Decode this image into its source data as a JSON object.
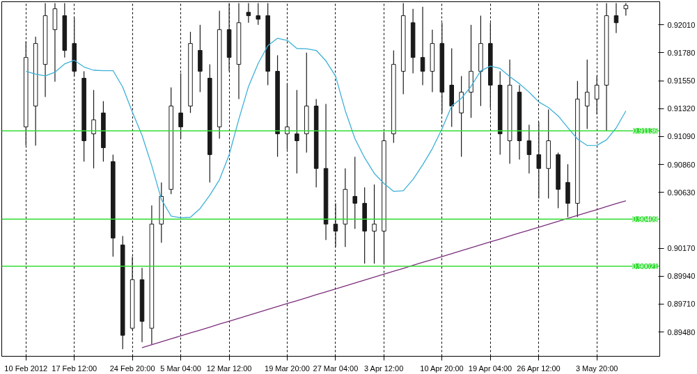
{
  "chart_data": {
    "type": "candlestick",
    "categories": [
      "10 Feb 2012",
      null,
      null,
      null,
      null,
      "17 Feb 12:00",
      null,
      null,
      null,
      null,
      null,
      "24 Feb 20:00",
      null,
      null,
      null,
      null,
      "5 Mar 04:00",
      null,
      null,
      null,
      null,
      "12 Mar 12:00",
      null,
      null,
      null,
      null,
      null,
      "19 Mar 20:00",
      null,
      null,
      null,
      null,
      "27 Mar 04:00",
      null,
      null,
      null,
      null,
      "3 Apr 12:00",
      null,
      null,
      null,
      null,
      null,
      "10 Apr 20:00",
      null,
      null,
      null,
      null,
      "19 Apr 04:00",
      null,
      null,
      null,
      null,
      "26 Apr 12:00",
      null,
      null,
      null,
      null,
      null,
      "3 May 20:00",
      null,
      null,
      null
    ],
    "ylim": [
      0.8928,
      0.922
    ],
    "yticks": [
      {
        "value": 0.9201,
        "label": "0.92010"
      },
      {
        "value": 0.9178,
        "label": "0.91780"
      },
      {
        "value": 0.9155,
        "label": "0.91550"
      },
      {
        "value": 0.9132,
        "label": "0.91320"
      },
      {
        "value": 0.9109,
        "label": "0.91090"
      },
      {
        "value": 0.9086,
        "label": "0.90860"
      },
      {
        "value": 0.9063,
        "label": "0.90630"
      },
      {
        "value": 0.9017,
        "label": "0.90170"
      },
      {
        "value": 0.8994,
        "label": "0.89940"
      },
      {
        "value": 0.8971,
        "label": "0.89710"
      },
      {
        "value": 0.8948,
        "label": "0.89480"
      }
    ],
    "grid": "x",
    "ref_lines": [
      {
        "axis": "y",
        "value": 0.91136,
        "label": "0.91136",
        "color": "#33dd33"
      },
      {
        "axis": "y",
        "value": 0.90409,
        "label": "0.90409",
        "color": "#33dd33"
      },
      {
        "axis": "y",
        "value": 0.90021,
        "label": "0.90021",
        "color": "#33dd33"
      }
    ],
    "series": [
      {
        "color": "#1a1a1a",
        "ohlc": [
          [
            0.91169,
            0.91873,
            0.91015,
            0.91741
          ],
          [
            0.91341,
            0.91913,
            0.91015,
            0.91856
          ],
          [
            0.91684,
            0.92188,
            0.91415,
            0.92085
          ],
          [
            0.9197,
            0.92188,
            0.91541,
            0.92142
          ],
          [
            0.92085,
            0.92188,
            0.91741,
            0.91799
          ],
          [
            0.91856,
            0.92067,
            0.91587,
            0.91627
          ],
          [
            0.9157,
            0.91627,
            0.90883,
            0.91055
          ],
          [
            0.91112,
            0.91473,
            0.90827,
            0.91227
          ],
          [
            0.91284,
            0.91381,
            0.90883,
            0.90998
          ],
          [
            0.90883,
            0.90941,
            0.901,
            0.90254
          ],
          [
            0.90197,
            0.90271,
            0.89339,
            0.89453
          ],
          [
            0.89511,
            0.901,
            0.89494,
            0.89911
          ],
          [
            0.89911,
            0.90008,
            0.89396,
            0.89568
          ],
          [
            0.89511,
            0.90523,
            0.89379,
            0.90369
          ],
          [
            0.90369,
            0.90712,
            0.90214,
            0.90597
          ],
          [
            0.90655,
            0.91495,
            0.90615,
            0.91341
          ],
          [
            0.91284,
            0.9161,
            0.91072,
            0.91169
          ],
          [
            0.91341,
            0.91953,
            0.91284,
            0.91856
          ],
          [
            0.91799,
            0.9201,
            0.91455,
            0.91627
          ],
          [
            0.9157,
            0.91684,
            0.90712,
            0.90941
          ],
          [
            0.91169,
            0.92125,
            0.91072,
            0.9197
          ],
          [
            0.9197,
            0.92188,
            0.91627,
            0.91741
          ],
          [
            0.91684,
            0.92188,
            0.91398,
            0.92027
          ],
          [
            0.92113,
            0.92188,
            0.92027,
            0.92085
          ],
          [
            0.92085,
            0.92188,
            0.9201,
            0.92056
          ],
          [
            0.92085,
            0.92188,
            0.91513,
            0.91627
          ],
          [
            0.91627,
            0.91759,
            0.90923,
            0.91112
          ],
          [
            0.91112,
            0.9153,
            0.90981,
            0.91169
          ],
          [
            0.91112,
            0.91473,
            0.90786,
            0.91055
          ],
          [
            0.91112,
            0.91781,
            0.90958,
            0.91341
          ],
          [
            0.91341,
            0.91398,
            0.90672,
            0.90827
          ],
          [
            0.90827,
            0.91358,
            0.90237,
            0.90369
          ],
          [
            0.90369,
            0.9054,
            0.9018,
            0.90311
          ],
          [
            0.90369,
            0.90827,
            0.9018,
            0.90655
          ],
          [
            0.90597,
            0.90923,
            0.90329,
            0.9054
          ],
          [
            0.9054,
            0.90672,
            0.90043,
            0.90311
          ],
          [
            0.90311,
            0.90695,
            0.90043,
            0.90369
          ],
          [
            0.90311,
            0.91129,
            0.90043,
            0.91055
          ],
          [
            0.91112,
            0.91799,
            0.91038,
            0.91684
          ],
          [
            0.91627,
            0.92188,
            0.91438,
            0.92085
          ],
          [
            0.92027,
            0.92142,
            0.9161,
            0.91741
          ],
          [
            0.91741,
            0.92159,
            0.91513,
            0.91627
          ],
          [
            0.91627,
            0.9197,
            0.91455,
            0.91856
          ],
          [
            0.91856,
            0.92027,
            0.91284,
            0.91455
          ],
          [
            0.91513,
            0.91816,
            0.91169,
            0.91341
          ],
          [
            0.91284,
            0.91587,
            0.90923,
            0.91455
          ],
          [
            0.91455,
            0.9201,
            0.91244,
            0.91627
          ],
          [
            0.91627,
            0.92085,
            0.91341,
            0.91856
          ],
          [
            0.91856,
            0.92027,
            0.91324,
            0.91513
          ],
          [
            0.91513,
            0.91627,
            0.90941,
            0.91112
          ],
          [
            0.91055,
            0.91724,
            0.90866,
            0.91513
          ],
          [
            0.91455,
            0.91513,
            0.90901,
            0.91055
          ],
          [
            0.91055,
            0.91187,
            0.90786,
            0.90941
          ],
          [
            0.90941,
            0.91209,
            0.9058,
            0.90827
          ],
          [
            0.90827,
            0.91312,
            0.9058,
            0.91055
          ],
          [
            0.90941,
            0.90958,
            0.905,
            0.90655
          ],
          [
            0.90712,
            0.90861,
            0.90426,
            0.9054
          ],
          [
            0.9054,
            0.91547,
            0.90426,
            0.91398
          ],
          [
            0.91341,
            0.91724,
            0.91152,
            0.91455
          ],
          [
            0.91398,
            0.91587,
            0.91272,
            0.91513
          ],
          [
            0.91513,
            0.92188,
            0.91135,
            0.92085
          ],
          [
            0.92085,
            0.92188,
            0.91942,
            0.92027
          ],
          [
            0.92142,
            0.92188,
            0.92085,
            0.9217
          ]
        ]
      },
      {
        "type": "line",
        "color": "#3cb0d8",
        "values": [
          0.91627,
          0.91604,
          0.9159,
          0.9162,
          0.91688,
          0.91718,
          0.91663,
          0.91636,
          0.91633,
          0.91633,
          0.91497,
          0.91291,
          0.91099,
          0.90851,
          0.90572,
          0.90435,
          0.90421,
          0.90425,
          0.90497,
          0.90606,
          0.90734,
          0.90939,
          0.91232,
          0.91502,
          0.91692,
          0.91838,
          0.91899,
          0.91882,
          0.91815,
          0.91813,
          0.91799,
          0.91713,
          0.91587,
          0.91303,
          0.91072,
          0.90915,
          0.90786,
          0.90703,
          0.90638,
          0.90643,
          0.90736,
          0.90857,
          0.9099,
          0.91154,
          0.91341,
          0.91404,
          0.91504,
          0.91631,
          0.9167,
          0.91651,
          0.91583,
          0.91525,
          0.91455,
          0.91375,
          0.91328,
          0.9126,
          0.91163,
          0.91069,
          0.91016,
          0.91017,
          0.91063,
          0.91161,
          0.91301
        ]
      },
      {
        "type": "line",
        "color": "#7b2d7b",
        "values": [
          null,
          null,
          null,
          null,
          null,
          null,
          null,
          null,
          null,
          null,
          null,
          null,
          0.89351,
          0.89375,
          0.89399,
          0.89424,
          0.89448,
          0.89472,
          0.89496,
          0.8952,
          0.89545,
          0.89569,
          0.89593,
          0.89617,
          0.89641,
          0.89666,
          0.8969,
          0.89714,
          0.89738,
          0.89762,
          0.89787,
          0.89811,
          0.89835,
          0.89859,
          0.89883,
          0.89908,
          0.89932,
          0.89956,
          0.8998,
          0.90004,
          0.90029,
          0.90053,
          0.90077,
          0.90101,
          0.90125,
          0.9015,
          0.90174,
          0.90198,
          0.90222,
          0.90246,
          0.90271,
          0.90295,
          0.90319,
          0.90343,
          0.90367,
          0.90392,
          0.90416,
          0.9044,
          0.90464,
          0.90488,
          0.90513,
          0.90537,
          0.90561
        ]
      }
    ]
  }
}
